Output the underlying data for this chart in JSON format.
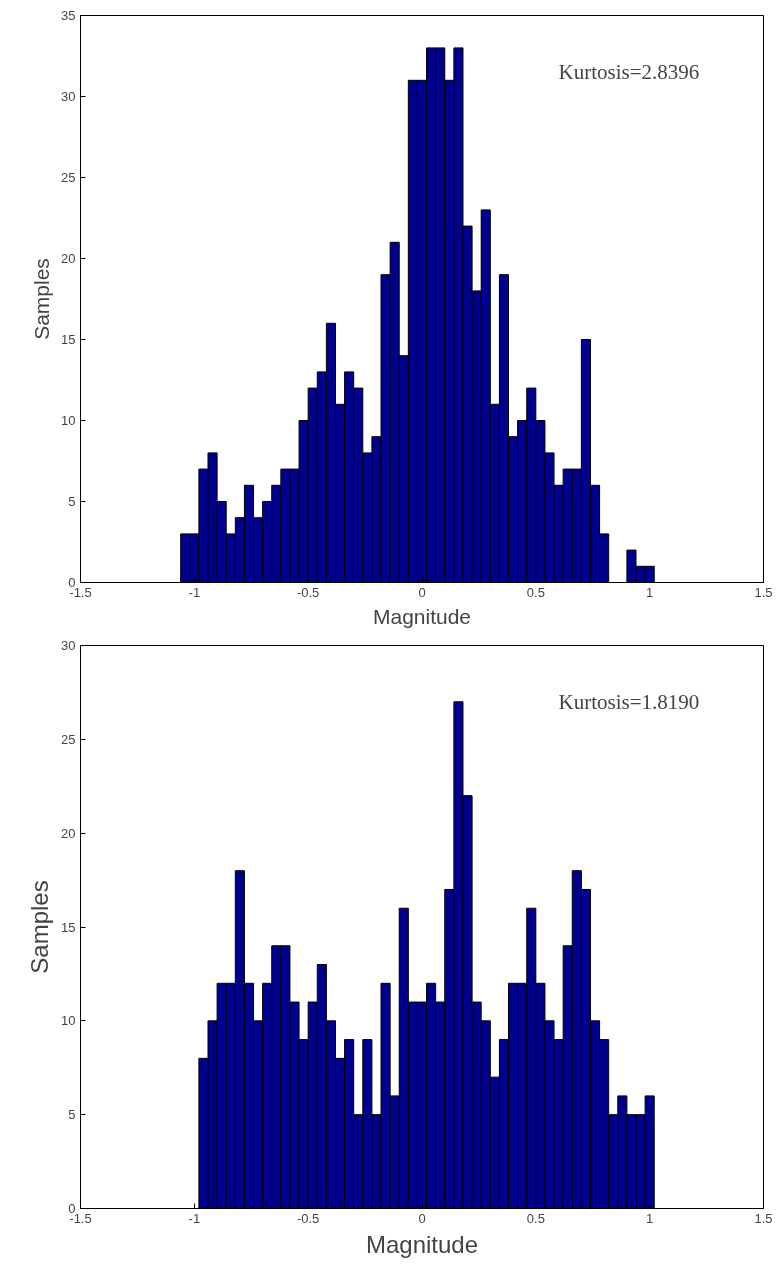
{
  "chart_data": [
    {
      "type": "histogram",
      "xlabel": "Magnitude",
      "ylabel": "Samples",
      "annotations": [
        "Kurtosis=2.8396"
      ],
      "color": "#00008f",
      "bins": [
        -1.06,
        -1.02,
        -0.98,
        -0.94,
        -0.9,
        -0.86,
        -0.82,
        -0.78,
        -0.74,
        -0.7,
        -0.66,
        -0.62,
        -0.58,
        -0.54,
        -0.5,
        -0.46,
        -0.42,
        -0.38,
        -0.34,
        -0.3,
        -0.26,
        -0.22,
        -0.18,
        -0.14,
        -0.1,
        -0.06,
        -0.02,
        0.02,
        0.06,
        0.1,
        0.14,
        0.18,
        0.22,
        0.26,
        0.3,
        0.34,
        0.38,
        0.42,
        0.46,
        0.5,
        0.54,
        0.58,
        0.62,
        0.66,
        0.7,
        0.74,
        0.78,
        0.82,
        0.86,
        0.9,
        0.94,
        0.98,
        1.02
      ],
      "values": [
        3,
        3,
        7,
        8,
        5,
        3,
        4,
        6,
        4,
        5,
        6,
        7,
        7,
        10,
        12,
        13,
        16,
        11,
        13,
        12,
        8,
        9,
        19,
        21,
        14,
        31,
        31,
        33,
        33,
        31,
        33,
        22,
        18,
        23,
        11,
        19,
        9,
        10,
        12,
        10,
        8,
        6,
        7,
        7,
        15,
        6,
        3,
        0,
        0,
        2,
        1,
        1
      ],
      "xlim": [
        -1.5,
        1.5
      ],
      "xticks": [
        -1.5,
        -1,
        -0.5,
        0,
        0.5,
        1,
        1.5
      ],
      "ylim": [
        0,
        35
      ],
      "yticks": [
        0,
        5,
        10,
        15,
        20,
        25,
        30,
        35
      ]
    },
    {
      "type": "histogram",
      "xlabel": "Magnitude",
      "ylabel": "Samples",
      "annotations": [
        "Kurtosis=1.8190"
      ],
      "color": "#00008f",
      "bins": [
        -0.98,
        -0.94,
        -0.9,
        -0.86,
        -0.82,
        -0.78,
        -0.74,
        -0.7,
        -0.66,
        -0.62,
        -0.58,
        -0.54,
        -0.5,
        -0.46,
        -0.42,
        -0.38,
        -0.34,
        -0.3,
        -0.26,
        -0.22,
        -0.18,
        -0.14,
        -0.1,
        -0.06,
        -0.02,
        0.02,
        0.06,
        0.1,
        0.14,
        0.18,
        0.22,
        0.26,
        0.3,
        0.34,
        0.38,
        0.42,
        0.46,
        0.5,
        0.54,
        0.58,
        0.62,
        0.66,
        0.7,
        0.74,
        0.78,
        0.82,
        0.86,
        0.9,
        0.94,
        0.98,
        1.02
      ],
      "values": [
        8,
        10,
        12,
        12,
        18,
        12,
        10,
        12,
        14,
        14,
        11,
        9,
        11,
        13,
        10,
        8,
        9,
        5,
        9,
        5,
        12,
        6,
        16,
        11,
        11,
        12,
        11,
        17,
        27,
        22,
        11,
        10,
        7,
        9,
        12,
        12,
        16,
        12,
        10,
        9,
        14,
        18,
        17,
        10,
        9,
        5,
        6,
        5,
        5,
        6
      ],
      "xlim": [
        -1.5,
        1.5
      ],
      "xticks": [
        -1.5,
        -1,
        -0.5,
        0,
        0.5,
        1,
        1.5
      ],
      "ylim": [
        0,
        30
      ],
      "yticks": [
        0,
        5,
        10,
        15,
        20,
        25,
        30
      ]
    }
  ]
}
